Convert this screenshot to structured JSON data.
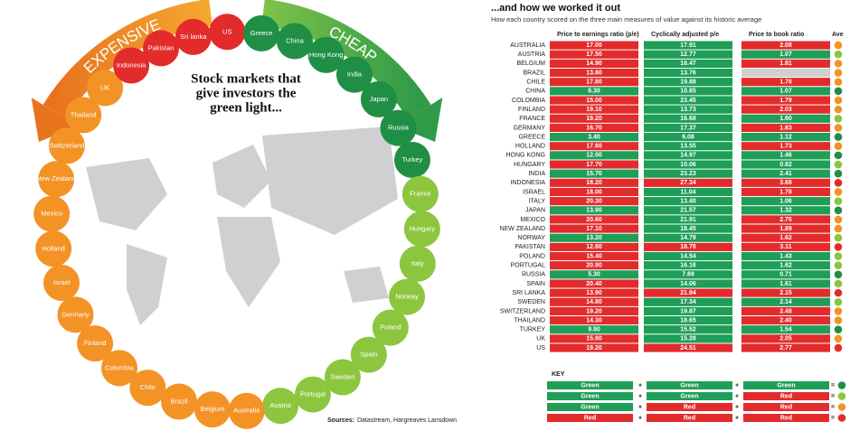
{
  "left": {
    "title_lines": [
      "Stock markets that",
      "give investors the",
      "green light..."
    ],
    "expensive": "EXPENSIVE",
    "cheap": "CHEAP",
    "source_label": "Sources:",
    "source": "Datastream, Hargreaves Lansdown",
    "countries": [
      {
        "name": "US",
        "color": "red"
      },
      {
        "name": "Greece",
        "color": "darkgreen"
      },
      {
        "name": "China",
        "color": "darkgreen"
      },
      {
        "name": "Hong Kong",
        "color": "darkgreen"
      },
      {
        "name": "India",
        "color": "darkgreen"
      },
      {
        "name": "Japan",
        "color": "darkgreen"
      },
      {
        "name": "Russia",
        "color": "darkgreen"
      },
      {
        "name": "Turkey",
        "color": "darkgreen"
      },
      {
        "name": "France",
        "color": "lightgreen"
      },
      {
        "name": "Hungary",
        "color": "lightgreen"
      },
      {
        "name": "Italy",
        "color": "lightgreen"
      },
      {
        "name": "Norway",
        "color": "lightgreen"
      },
      {
        "name": "Poland",
        "color": "lightgreen"
      },
      {
        "name": "Spain",
        "color": "lightgreen"
      },
      {
        "name": "Sweden",
        "color": "lightgreen"
      },
      {
        "name": "Portugal",
        "color": "lightgreen"
      },
      {
        "name": "Austria",
        "color": "lightgreen"
      },
      {
        "name": "Australia",
        "color": "orange"
      },
      {
        "name": "Belgium",
        "color": "orange"
      },
      {
        "name": "Brazil",
        "color": "orange"
      },
      {
        "name": "Chile",
        "color": "orange"
      },
      {
        "name": "Colombia",
        "color": "orange"
      },
      {
        "name": "Finland",
        "color": "orange"
      },
      {
        "name": "Germany",
        "color": "orange"
      },
      {
        "name": "Israel",
        "color": "orange"
      },
      {
        "name": "Holland",
        "color": "orange"
      },
      {
        "name": "Mexico",
        "color": "orange"
      },
      {
        "name": "New Zealand",
        "color": "orange"
      },
      {
        "name": "Switzerland",
        "color": "orange"
      },
      {
        "name": "Thailand",
        "color": "orange"
      },
      {
        "name": "UK",
        "color": "orange"
      },
      {
        "name": "Indonesia",
        "color": "red"
      },
      {
        "name": "Pakistan",
        "color": "red"
      },
      {
        "name": "Sri lanka",
        "color": "red"
      }
    ]
  },
  "right": {
    "title": "...and how we worked it out",
    "subtitle": "How each country scored on the three main measures of value against its historic average",
    "columns": [
      "Price to earnings ratio (p/e)",
      "Cyclically adjusted p/e",
      "Price to book ratio",
      "Ave"
    ],
    "rows": [
      {
        "country": "AUSTRALIA",
        "values": [
          "17.00",
          "17.91",
          "2.08"
        ],
        "colors": [
          "red",
          "green",
          "red",
          "orange"
        ]
      },
      {
        "country": "AUSTRIA",
        "values": [
          "17.50",
          "12.77",
          "1.07"
        ],
        "colors": [
          "red",
          "green",
          "green",
          "lightgreen"
        ]
      },
      {
        "country": "BELGIUM",
        "values": [
          "14.90",
          "16.47",
          "1.81"
        ],
        "colors": [
          "red",
          "green",
          "red",
          "orange"
        ]
      },
      {
        "country": "BRAZIL",
        "values": [
          "13.80",
          "13.76",
          null
        ],
        "colors": [
          "red",
          "green",
          "gray",
          "orange"
        ]
      },
      {
        "country": "CHILE",
        "values": [
          "17.80",
          "19.88",
          "1.78"
        ],
        "colors": [
          "red",
          "green",
          "red",
          "orange"
        ]
      },
      {
        "country": "CHINA",
        "values": [
          "6.30",
          "10.85",
          "1.07"
        ],
        "colors": [
          "green",
          "green",
          "green",
          "darkgreen"
        ]
      },
      {
        "country": "COLOMBIA",
        "values": [
          "15.00",
          "23.45",
          "1.79"
        ],
        "colors": [
          "red",
          "green",
          "red",
          "orange"
        ]
      },
      {
        "country": "FINLAND",
        "values": [
          "19.10",
          "13.73",
          "2.03"
        ],
        "colors": [
          "red",
          "green",
          "red",
          "orange"
        ]
      },
      {
        "country": "FRANCE",
        "values": [
          "19.20",
          "16.68",
          "1.60"
        ],
        "colors": [
          "red",
          "green",
          "green",
          "lightgreen"
        ]
      },
      {
        "country": "GERMANY",
        "values": [
          "16.70",
          "17.37",
          "1.83"
        ],
        "colors": [
          "red",
          "green",
          "red",
          "orange"
        ]
      },
      {
        "country": "GREECE",
        "values": [
          "3.40",
          "6.08",
          "1.12"
        ],
        "colors": [
          "green",
          "green",
          "green",
          "darkgreen"
        ]
      },
      {
        "country": "HOLLAND",
        "values": [
          "17.60",
          "13.55",
          "1.73"
        ],
        "colors": [
          "red",
          "green",
          "red",
          "orange"
        ]
      },
      {
        "country": "HONG KONG",
        "values": [
          "12.00",
          "14.97",
          "1.46"
        ],
        "colors": [
          "green",
          "green",
          "green",
          "darkgreen"
        ]
      },
      {
        "country": "HUNGARY",
        "values": [
          "17.70",
          "10.06",
          "0.82"
        ],
        "colors": [
          "red",
          "green",
          "green",
          "lightgreen"
        ]
      },
      {
        "country": "INDIA",
        "values": [
          "15.70",
          "23.23",
          "2.41"
        ],
        "colors": [
          "green",
          "green",
          "green",
          "darkgreen"
        ]
      },
      {
        "country": "INDONESIA",
        "values": [
          "18.20",
          "27.34",
          "3.69"
        ],
        "colors": [
          "red",
          "red",
          "red",
          "red"
        ]
      },
      {
        "country": "ISRAEL",
        "values": [
          "18.00",
          "11.04",
          "1.78"
        ],
        "colors": [
          "red",
          "green",
          "red",
          "orange"
        ]
      },
      {
        "country": "ITALY",
        "values": [
          "20.30",
          "13.40",
          "1.06"
        ],
        "colors": [
          "red",
          "green",
          "green",
          "lightgreen"
        ]
      },
      {
        "country": "JAPAN",
        "values": [
          "13.90",
          "21.57",
          "1.32"
        ],
        "colors": [
          "green",
          "green",
          "green",
          "darkgreen"
        ]
      },
      {
        "country": "MEXICO",
        "values": [
          "20.60",
          "21.91",
          "2.75"
        ],
        "colors": [
          "red",
          "green",
          "red",
          "orange"
        ]
      },
      {
        "country": "NEW ZEALAND",
        "values": [
          "17.10",
          "18.45",
          "1.89"
        ],
        "colors": [
          "red",
          "green",
          "red",
          "orange"
        ]
      },
      {
        "country": "NORWAY",
        "values": [
          "13.20",
          "14.79",
          "1.62"
        ],
        "colors": [
          "green",
          "green",
          "red",
          "lightgreen"
        ]
      },
      {
        "country": "PAKISTAN",
        "values": [
          "12.80",
          "18.78",
          "3.11"
        ],
        "colors": [
          "red",
          "red",
          "red",
          "red"
        ]
      },
      {
        "country": "POLAND",
        "values": [
          "15.40",
          "14.54",
          "1.43"
        ],
        "colors": [
          "red",
          "green",
          "green",
          "lightgreen"
        ]
      },
      {
        "country": "PORTUGAL",
        "values": [
          "20.90",
          "16.16",
          "1.62"
        ],
        "colors": [
          "red",
          "green",
          "green",
          "lightgreen"
        ]
      },
      {
        "country": "RUSSIA",
        "values": [
          "5.30",
          "7.69",
          "0.71"
        ],
        "colors": [
          "green",
          "green",
          "green",
          "darkgreen"
        ]
      },
      {
        "country": "SPAIN",
        "values": [
          "20.40",
          "14.06",
          "1.61"
        ],
        "colors": [
          "red",
          "green",
          "green",
          "lightgreen"
        ]
      },
      {
        "country": "SRI LANKA",
        "values": [
          "13.90",
          "21.94",
          "2.15"
        ],
        "colors": [
          "red",
          "red",
          "red",
          "red"
        ]
      },
      {
        "country": "SWEDEN",
        "values": [
          "14.80",
          "17.34",
          "2.14"
        ],
        "colors": [
          "red",
          "green",
          "green",
          "lightgreen"
        ]
      },
      {
        "country": "SWITZERLAND",
        "values": [
          "19.20",
          "19.87",
          "2.48"
        ],
        "colors": [
          "red",
          "green",
          "red",
          "orange"
        ]
      },
      {
        "country": "THAILAND",
        "values": [
          "14.30",
          "18.65",
          "2.40"
        ],
        "colors": [
          "red",
          "green",
          "red",
          "orange"
        ]
      },
      {
        "country": "TURKEY",
        "values": [
          "9.90",
          "15.52",
          "1.54"
        ],
        "colors": [
          "green",
          "green",
          "green",
          "darkgreen"
        ]
      },
      {
        "country": "UK",
        "values": [
          "15.80",
          "15.28",
          "2.05"
        ],
        "colors": [
          "red",
          "green",
          "red",
          "orange"
        ]
      },
      {
        "country": "US",
        "values": [
          "19.20",
          "24.51",
          "2.77"
        ],
        "colors": [
          "red",
          "red",
          "red",
          "red"
        ]
      }
    ],
    "key": {
      "title": "KEY",
      "plus": "+",
      "equals": "=",
      "rows": [
        {
          "cells": [
            "Green",
            "Green",
            "Green"
          ],
          "colors": [
            "green",
            "green",
            "green",
            "darkgreen"
          ]
        },
        {
          "cells": [
            "Green",
            "Green",
            "Red"
          ],
          "colors": [
            "green",
            "green",
            "red",
            "lightgreen"
          ]
        },
        {
          "cells": [
            "Green",
            "Red",
            "Red"
          ],
          "colors": [
            "green",
            "red",
            "red",
            "orange"
          ]
        },
        {
          "cells": [
            "Red",
            "Red",
            "Red"
          ],
          "colors": [
            "red",
            "red",
            "red",
            "red"
          ]
        }
      ]
    }
  }
}
